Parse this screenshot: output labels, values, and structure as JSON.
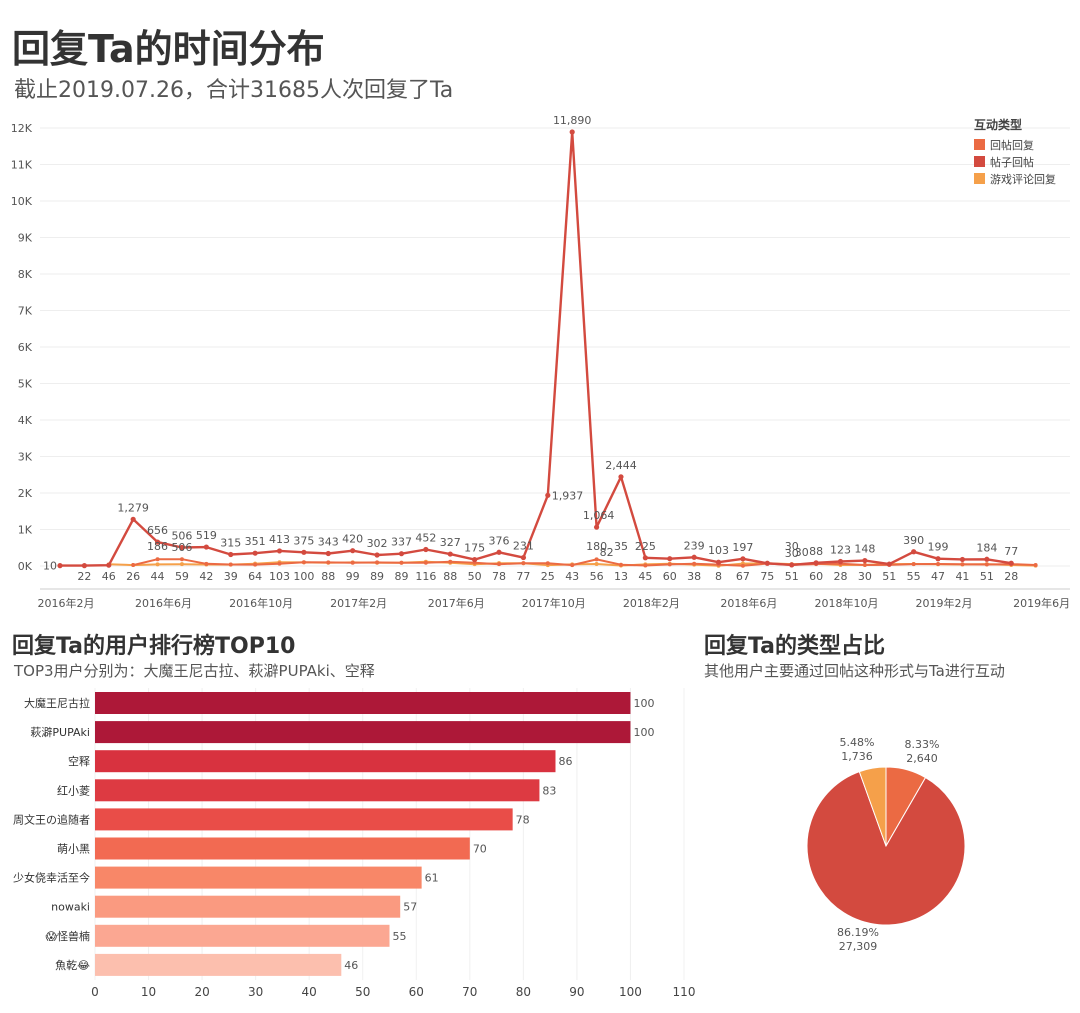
{
  "header": {
    "title": "回复Ta的时间分布",
    "subtitle": "截止2019.07.26，合计31685人次回复了Ta"
  },
  "sections": {
    "rank_title": "回复Ta的用户排行榜TOP10",
    "rank_subtitle": "TOP3用户分别为：大魔王尼古拉、萩澼PUPAki、空释",
    "pie_title": "回复Ta的类型占比",
    "pie_subtitle": "其他用户主要通过回帖这种形式与Ta进行互动"
  },
  "colors": {
    "reply_post": "#eb6a43",
    "thread_reply": "#d34a3f",
    "game_review": "#f5a04a"
  },
  "chart_data": [
    {
      "type": "line",
      "legend_title": "互动类型",
      "legend_position": "top-right",
      "ylim": [
        0,
        12000
      ],
      "yticks": [
        0,
        1000,
        2000,
        3000,
        4000,
        5000,
        6000,
        7000,
        8000,
        9000,
        10000,
        11000,
        12000
      ],
      "ytick_labels": [
        "0K",
        "1K",
        "2K",
        "3K",
        "4K",
        "5K",
        "6K",
        "7K",
        "8K",
        "9K",
        "10K",
        "11K",
        "12K"
      ],
      "x_tick_labels": [
        {
          "index": 0,
          "label": "2016年2月"
        },
        {
          "index": 4,
          "label": "2016年6月"
        },
        {
          "index": 8,
          "label": "2016年10月"
        },
        {
          "index": 12,
          "label": "2017年2月"
        },
        {
          "index": 16,
          "label": "2017年6月"
        },
        {
          "index": 20,
          "label": "2017年10月"
        },
        {
          "index": 24,
          "label": "2018年2月"
        },
        {
          "index": 28,
          "label": "2018年6月"
        },
        {
          "index": 32,
          "label": "2018年10月"
        },
        {
          "index": 36,
          "label": "2019年2月"
        },
        {
          "index": 40,
          "label": "2019年6月"
        }
      ],
      "x_count": 42,
      "series": [
        {
          "name": "帖子回帖",
          "color": "#d34a3f",
          "start_index": 0,
          "values": [
            10,
            10,
            22,
            1279,
            656,
            506,
            519,
            315,
            351,
            413,
            375,
            343,
            420,
            302,
            337,
            452,
            327,
            175,
            376,
            231,
            1937,
            11890,
            1064,
            2444,
            225,
            200,
            239,
            103,
            197,
            75,
            30,
            88,
            123,
            148,
            51,
            390,
            199,
            180,
            184,
            77
          ],
          "labels": [
            "10",
            "",
            "",
            "1,279",
            "656",
            "506",
            "519",
            "315",
            "351",
            "413",
            "375",
            "343",
            "420",
            "302",
            "337",
            "452",
            "327",
            "175",
            "376",
            "231",
            "1,937",
            "11,890",
            "1,064",
            "2,444",
            "225",
            "",
            "239",
            "103",
            "197",
            "",
            "30",
            "88",
            "123",
            "148",
            "",
            "390",
            "199",
            "",
            "184",
            "77"
          ]
        },
        {
          "name": "回帖回复",
          "color": "#eb6a43",
          "start_index": 3,
          "values": [
            26,
            186,
            186,
            59,
            42,
            39,
            64,
            103,
            100,
            88,
            99,
            89,
            89,
            116,
            88,
            50,
            78,
            77,
            25,
            180,
            35,
            13,
            45,
            60,
            38,
            8,
            67,
            30,
            51,
            60,
            28,
            30,
            51,
            55,
            47,
            41,
            51,
            28
          ],
          "labels": [
            "",
            "186",
            "",
            "",
            "",
            "",
            "",
            "",
            "",
            "",
            "",
            "",
            "",
            "",
            "",
            "",
            "",
            "",
            "",
            "180",
            "35",
            "",
            "",
            "",
            "",
            "",
            "",
            "30",
            "",
            "",
            "",
            "",
            "",
            "",
            "",
            "",
            "",
            ""
          ]
        },
        {
          "name": "游戏评论回复",
          "color": "#f5a04a",
          "start_index": 2,
          "values": [
            46,
            26,
            44,
            50,
            42,
            39,
            64,
            103,
            100,
            88,
            99,
            89,
            89,
            116,
            88,
            50,
            78,
            77,
            25,
            43,
            56,
            13,
            45,
            60,
            38,
            8,
            67,
            75,
            51,
            60,
            28,
            30,
            51,
            55,
            47,
            41,
            51,
            28,
            10
          ],
          "labels": []
        }
      ],
      "bottom_value_labels": [
        "22",
        "46",
        "26",
        "44",
        "59",
        "42",
        "39",
        "64",
        "103",
        "100",
        "88",
        "99",
        "89",
        "89",
        "116",
        "88",
        "50",
        "78",
        "77",
        "25",
        "43",
        "56",
        "13",
        "45",
        "60",
        "38",
        "8",
        "67",
        "75",
        "51",
        "60",
        "28",
        "30",
        "51",
        "55",
        "47",
        "41",
        "51",
        "28"
      ],
      "extra_labels": [
        "506",
        "82",
        "30"
      ]
    },
    {
      "type": "bar",
      "orientation": "horizontal",
      "categories": [
        "大魔王尼古拉",
        "萩澼PUPAki",
        "空释",
        "红小菱",
        "周文王の追随者",
        "萌小黑",
        "少女侥幸活至今",
        "nowaki",
        "😱怪兽楠",
        "魚乾😂"
      ],
      "values": [
        100,
        100,
        86,
        83,
        78,
        70,
        61,
        57,
        55,
        46
      ],
      "colors": [
        "#ad1838",
        "#ad1838",
        "#d8323f",
        "#dd3a42",
        "#e94d48",
        "#f26a52",
        "#f88768",
        "#fa9a80",
        "#fba792",
        "#fcbfae"
      ],
      "xlim": [
        0,
        110
      ],
      "xticks": [
        0,
        10,
        20,
        30,
        40,
        50,
        60,
        70,
        80,
        90,
        100,
        110
      ]
    },
    {
      "type": "pie",
      "slices": [
        {
          "name": "回帖回复",
          "value": 2640,
          "percent": "8.33%",
          "value_label": "2,640",
          "color": "#eb6a43"
        },
        {
          "name": "帖子回帖",
          "value": 27309,
          "percent": "86.19%",
          "value_label": "27,309",
          "color": "#d34a3f"
        },
        {
          "name": "游戏评论回复",
          "value": 1736,
          "percent": "5.48%",
          "value_label": "1,736",
          "color": "#f5a04a"
        }
      ]
    }
  ]
}
